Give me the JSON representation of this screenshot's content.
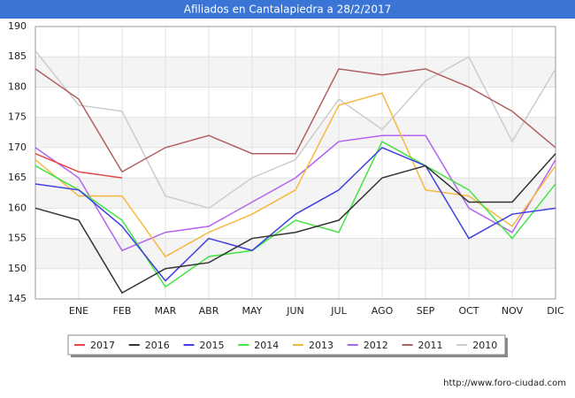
{
  "chart_data": {
    "type": "line",
    "title": "Afiliados en Cantalapiedra a 28/2/2017",
    "categories": [
      null,
      "ENE",
      "FEB",
      "MAR",
      "ABR",
      "MAY",
      "JUN",
      "JUL",
      "AGO",
      "SEP",
      "OCT",
      "NOV",
      "DIC"
    ],
    "series": [
      {
        "name": "2017",
        "color": "#e84545",
        "values": [
          169,
          166,
          165,
          null,
          null,
          null,
          null,
          null,
          null,
          null,
          null,
          null,
          null
        ]
      },
      {
        "name": "2016",
        "color": "#333333",
        "values": [
          160,
          158,
          146,
          150,
          151,
          155,
          156,
          158,
          165,
          167,
          161,
          161,
          169
        ]
      },
      {
        "name": "2015",
        "color": "#4040e0",
        "values": [
          164,
          163,
          157,
          148,
          155,
          153,
          159,
          163,
          170,
          167,
          155,
          159,
          160
        ]
      },
      {
        "name": "2014",
        "color": "#44e444",
        "values": [
          167,
          163,
          158,
          147,
          152,
          153,
          158,
          156,
          171,
          167,
          163,
          155,
          164
        ]
      },
      {
        "name": "2013",
        "color": "#f5b942",
        "values": [
          168,
          162,
          162,
          152,
          156,
          159,
          163,
          177,
          179,
          163,
          162,
          157,
          167
        ]
      },
      {
        "name": "2012",
        "color": "#b462f0",
        "values": [
          170,
          165,
          153,
          156,
          157,
          161,
          165,
          171,
          172,
          172,
          160,
          156,
          168
        ]
      },
      {
        "name": "2011",
        "color": "#b06060",
        "values": [
          183,
          178,
          166,
          170,
          172,
          169,
          169,
          183,
          182,
          183,
          180,
          176,
          170
        ]
      },
      {
        "name": "2010",
        "color": "#cccccc",
        "values": [
          186,
          177,
          176,
          162,
          160,
          165,
          168,
          178,
          173,
          181,
          185,
          171,
          183
        ]
      }
    ],
    "ylim": [
      145,
      190
    ],
    "yticks": [
      145,
      150,
      155,
      160,
      165,
      170,
      175,
      180,
      185,
      190
    ],
    "grid": true,
    "legend": "bottom",
    "source": "http://www.foro-ciudad.com"
  }
}
